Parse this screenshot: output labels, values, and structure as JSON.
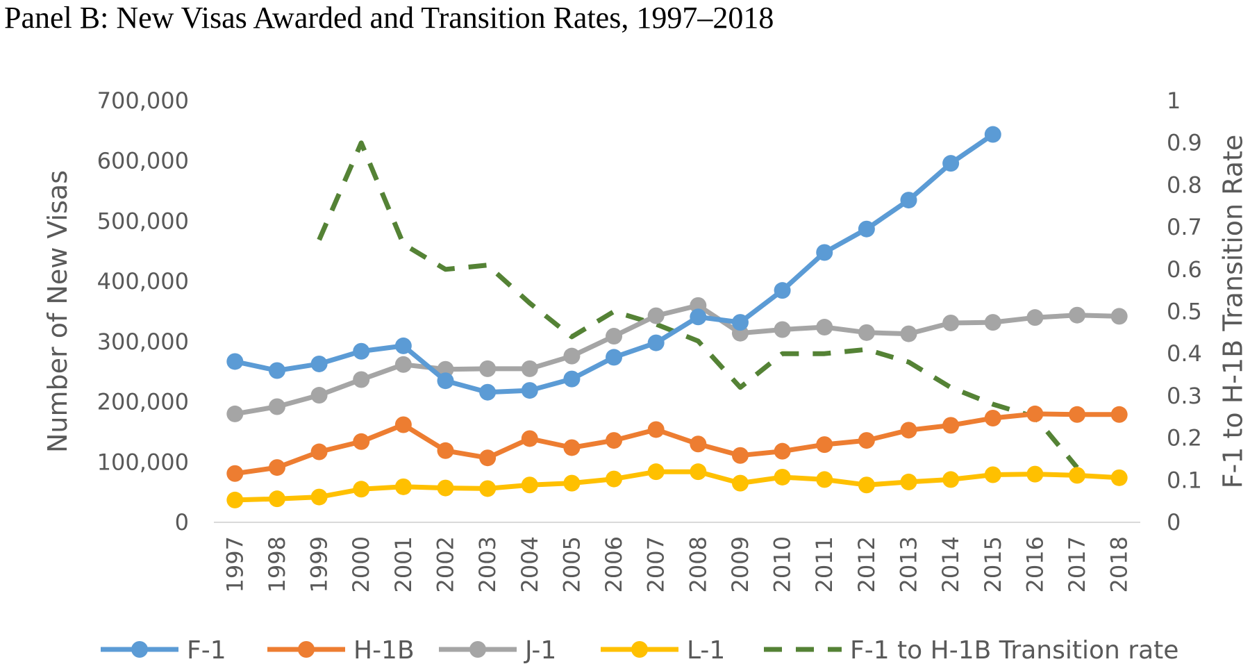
{
  "chart_data": {
    "type": "line",
    "title": "Panel B: New Visas Awarded and Transition Rates, 1997–2018",
    "xlabel": "",
    "ylabel": "Number of New Visas",
    "y2label": "F-1 to H-1B Transition Rate",
    "categories": [
      "1997",
      "1998",
      "1999",
      "2000",
      "2001",
      "2002",
      "2003",
      "2004",
      "2005",
      "2006",
      "2007",
      "2008",
      "2009",
      "2010",
      "2011",
      "2012",
      "2013",
      "2014",
      "2015",
      "2016",
      "2017",
      "2018"
    ],
    "ylim": [
      0,
      700000
    ],
    "yticks": [
      0,
      100000,
      200000,
      300000,
      400000,
      500000,
      600000,
      700000
    ],
    "ytick_labels": [
      "0",
      "100,000",
      "200,000",
      "300,000",
      "400,000",
      "500,000",
      "600,000",
      "700,000"
    ],
    "y2lim": [
      0,
      1
    ],
    "y2ticks": [
      0,
      0.1,
      0.2,
      0.3,
      0.4,
      0.5,
      0.6,
      0.7,
      0.8,
      0.9,
      1
    ],
    "y2tick_labels": [
      "0",
      "0.1",
      "0.2",
      "0.3",
      "0.4",
      "0.5",
      "0.6",
      "0.7",
      "0.8",
      "0.9",
      "1"
    ],
    "legend_position": "bottom",
    "series": [
      {
        "name": "F-1",
        "color": "#5B9BD5",
        "axis": "left",
        "style": "solid-markers",
        "values": [
          267000,
          252000,
          263000,
          284000,
          293000,
          235000,
          216000,
          219000,
          238000,
          274000,
          298000,
          341000,
          332000,
          385000,
          448000,
          487000,
          535000,
          596000,
          644000,
          null,
          null,
          null
        ]
      },
      {
        "name": "H-1B",
        "color": "#ED7D31",
        "axis": "left",
        "style": "solid-markers",
        "values": [
          81000,
          91000,
          117000,
          134000,
          162000,
          119000,
          107000,
          139000,
          124000,
          136000,
          154000,
          130000,
          111000,
          118000,
          129000,
          136000,
          153000,
          161000,
          173000,
          180000,
          179000,
          179000
        ]
      },
      {
        "name": "J-1",
        "color": "#A5A5A5",
        "axis": "left",
        "style": "solid-markers",
        "values": [
          180000,
          192000,
          211000,
          237000,
          262000,
          254000,
          255000,
          255000,
          276000,
          309000,
          343000,
          360000,
          314000,
          320000,
          324000,
          315000,
          313000,
          331000,
          332000,
          340000,
          344000,
          342000
        ]
      },
      {
        "name": "L-1",
        "color": "#FFC000",
        "axis": "left",
        "style": "solid-markers",
        "values": [
          37000,
          39000,
          42000,
          55000,
          59000,
          57000,
          56000,
          62000,
          65000,
          72000,
          84000,
          84000,
          65000,
          75000,
          71000,
          62000,
          67000,
          71000,
          79000,
          80000,
          78000,
          74000
        ]
      },
      {
        "name": "F-1 to H-1B Transition rate",
        "color": "#548235",
        "axis": "right",
        "style": "dashed",
        "values": [
          null,
          null,
          0.67,
          0.9,
          0.66,
          0.6,
          0.61,
          0.52,
          0.44,
          0.5,
          0.47,
          0.43,
          0.32,
          0.4,
          0.4,
          0.41,
          0.38,
          0.32,
          0.28,
          0.25,
          0.13,
          null
        ]
      }
    ]
  }
}
